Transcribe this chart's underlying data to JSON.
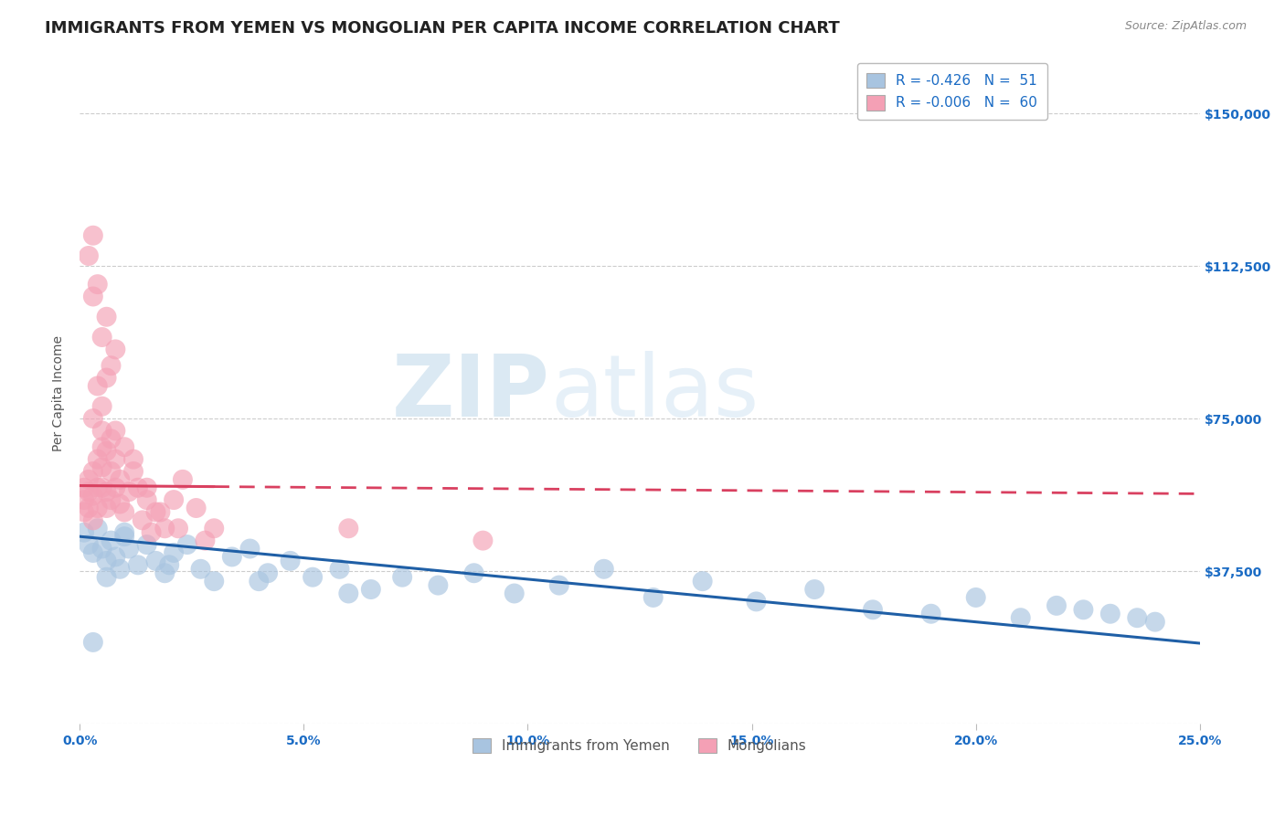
{
  "title": "IMMIGRANTS FROM YEMEN VS MONGOLIAN PER CAPITA INCOME CORRELATION CHART",
  "source": "Source: ZipAtlas.com",
  "xlabel_blue": "Immigrants from Yemen",
  "xlabel_pink": "Mongolians",
  "ylabel": "Per Capita Income",
  "legend_blue": {
    "R": -0.426,
    "N": 51
  },
  "legend_pink": {
    "R": -0.006,
    "N": 60
  },
  "xlim": [
    0.0,
    0.25
  ],
  "ylim": [
    0,
    162500
  ],
  "yticks": [
    0,
    37500,
    75000,
    112500,
    150000
  ],
  "ytick_labels": [
    "",
    "$37,500",
    "$75,000",
    "$112,500",
    "$150,000"
  ],
  "xticks": [
    0.0,
    0.05,
    0.1,
    0.15,
    0.2,
    0.25
  ],
  "xtick_labels": [
    "0.0%",
    "5.0%",
    "10.0%",
    "15.0%",
    "20.0%",
    "25.0%"
  ],
  "blue_color": "#a8c4e0",
  "pink_color": "#f4a0b5",
  "blue_line_color": "#1f5fa6",
  "pink_line_color": "#d94060",
  "grid_color": "#cccccc",
  "background_color": "#ffffff",
  "blue_scatter_x": [
    0.001,
    0.002,
    0.003,
    0.004,
    0.005,
    0.006,
    0.007,
    0.008,
    0.009,
    0.01,
    0.011,
    0.013,
    0.015,
    0.017,
    0.019,
    0.021,
    0.024,
    0.027,
    0.03,
    0.034,
    0.038,
    0.042,
    0.047,
    0.052,
    0.058,
    0.065,
    0.072,
    0.08,
    0.088,
    0.097,
    0.107,
    0.117,
    0.128,
    0.139,
    0.151,
    0.164,
    0.177,
    0.19,
    0.2,
    0.21,
    0.218,
    0.224,
    0.23,
    0.236,
    0.24,
    0.003,
    0.006,
    0.01,
    0.02,
    0.04,
    0.06
  ],
  "blue_scatter_y": [
    47000,
    44000,
    42000,
    48000,
    43000,
    40000,
    45000,
    41000,
    38000,
    46000,
    43000,
    39000,
    44000,
    40000,
    37000,
    42000,
    44000,
    38000,
    35000,
    41000,
    43000,
    37000,
    40000,
    36000,
    38000,
    33000,
    36000,
    34000,
    37000,
    32000,
    34000,
    38000,
    31000,
    35000,
    30000,
    33000,
    28000,
    27000,
    31000,
    26000,
    29000,
    28000,
    27000,
    26000,
    25000,
    20000,
    36000,
    47000,
    39000,
    35000,
    32000
  ],
  "pink_scatter_x": [
    0.001,
    0.001,
    0.001,
    0.002,
    0.002,
    0.002,
    0.003,
    0.003,
    0.003,
    0.004,
    0.004,
    0.004,
    0.005,
    0.005,
    0.005,
    0.005,
    0.006,
    0.006,
    0.006,
    0.007,
    0.007,
    0.007,
    0.008,
    0.008,
    0.009,
    0.009,
    0.01,
    0.01,
    0.011,
    0.012,
    0.013,
    0.014,
    0.015,
    0.016,
    0.017,
    0.019,
    0.021,
    0.023,
    0.026,
    0.03,
    0.003,
    0.004,
    0.005,
    0.006,
    0.007,
    0.008,
    0.002,
    0.003,
    0.003,
    0.004,
    0.005,
    0.006,
    0.008,
    0.012,
    0.015,
    0.018,
    0.022,
    0.028,
    0.06,
    0.09
  ],
  "pink_scatter_y": [
    55000,
    58000,
    52000,
    60000,
    57000,
    53000,
    62000,
    56000,
    50000,
    65000,
    58000,
    53000,
    68000,
    63000,
    58000,
    72000,
    67000,
    57000,
    53000,
    70000,
    62000,
    55000,
    65000,
    58000,
    60000,
    54000,
    68000,
    52000,
    57000,
    62000,
    58000,
    50000,
    55000,
    47000,
    52000,
    48000,
    55000,
    60000,
    53000,
    48000,
    120000,
    108000,
    95000,
    100000,
    88000,
    92000,
    115000,
    105000,
    75000,
    83000,
    78000,
    85000,
    72000,
    65000,
    58000,
    52000,
    48000,
    45000,
    48000,
    45000
  ],
  "watermark_zip": "ZIP",
  "watermark_atlas": "atlas",
  "title_fontsize": 13,
  "axis_label_fontsize": 10,
  "tick_fontsize": 10,
  "legend_fontsize": 11
}
